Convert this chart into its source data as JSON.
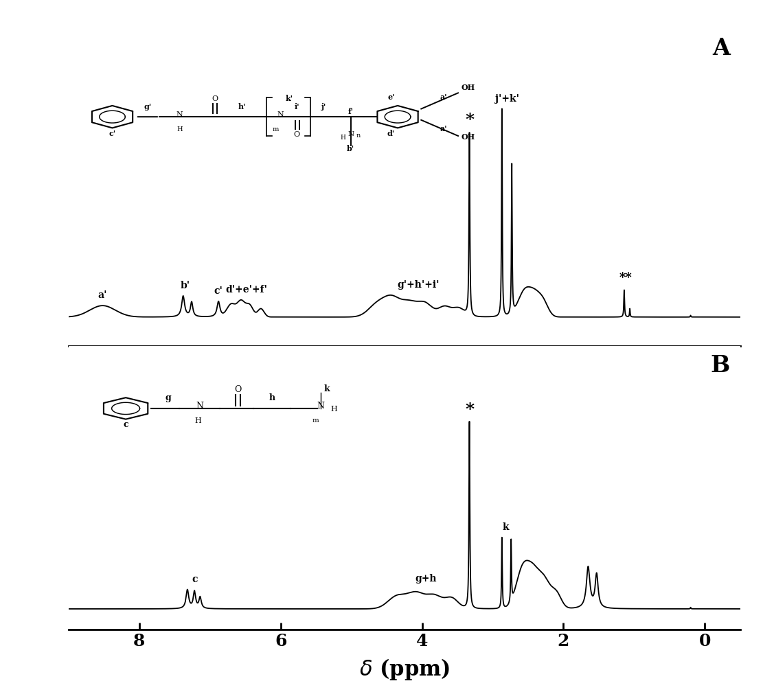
{
  "fig_width": 11.11,
  "fig_height": 10.08,
  "dpi": 100,
  "xlim": [
    9.0,
    -0.5
  ],
  "xticks": [
    8,
    6,
    4,
    2,
    0
  ],
  "xlabel": "δ (ppm)",
  "spectrum_color": "#000000",
  "background_color": "#ffffff",
  "linewidth": 1.3
}
